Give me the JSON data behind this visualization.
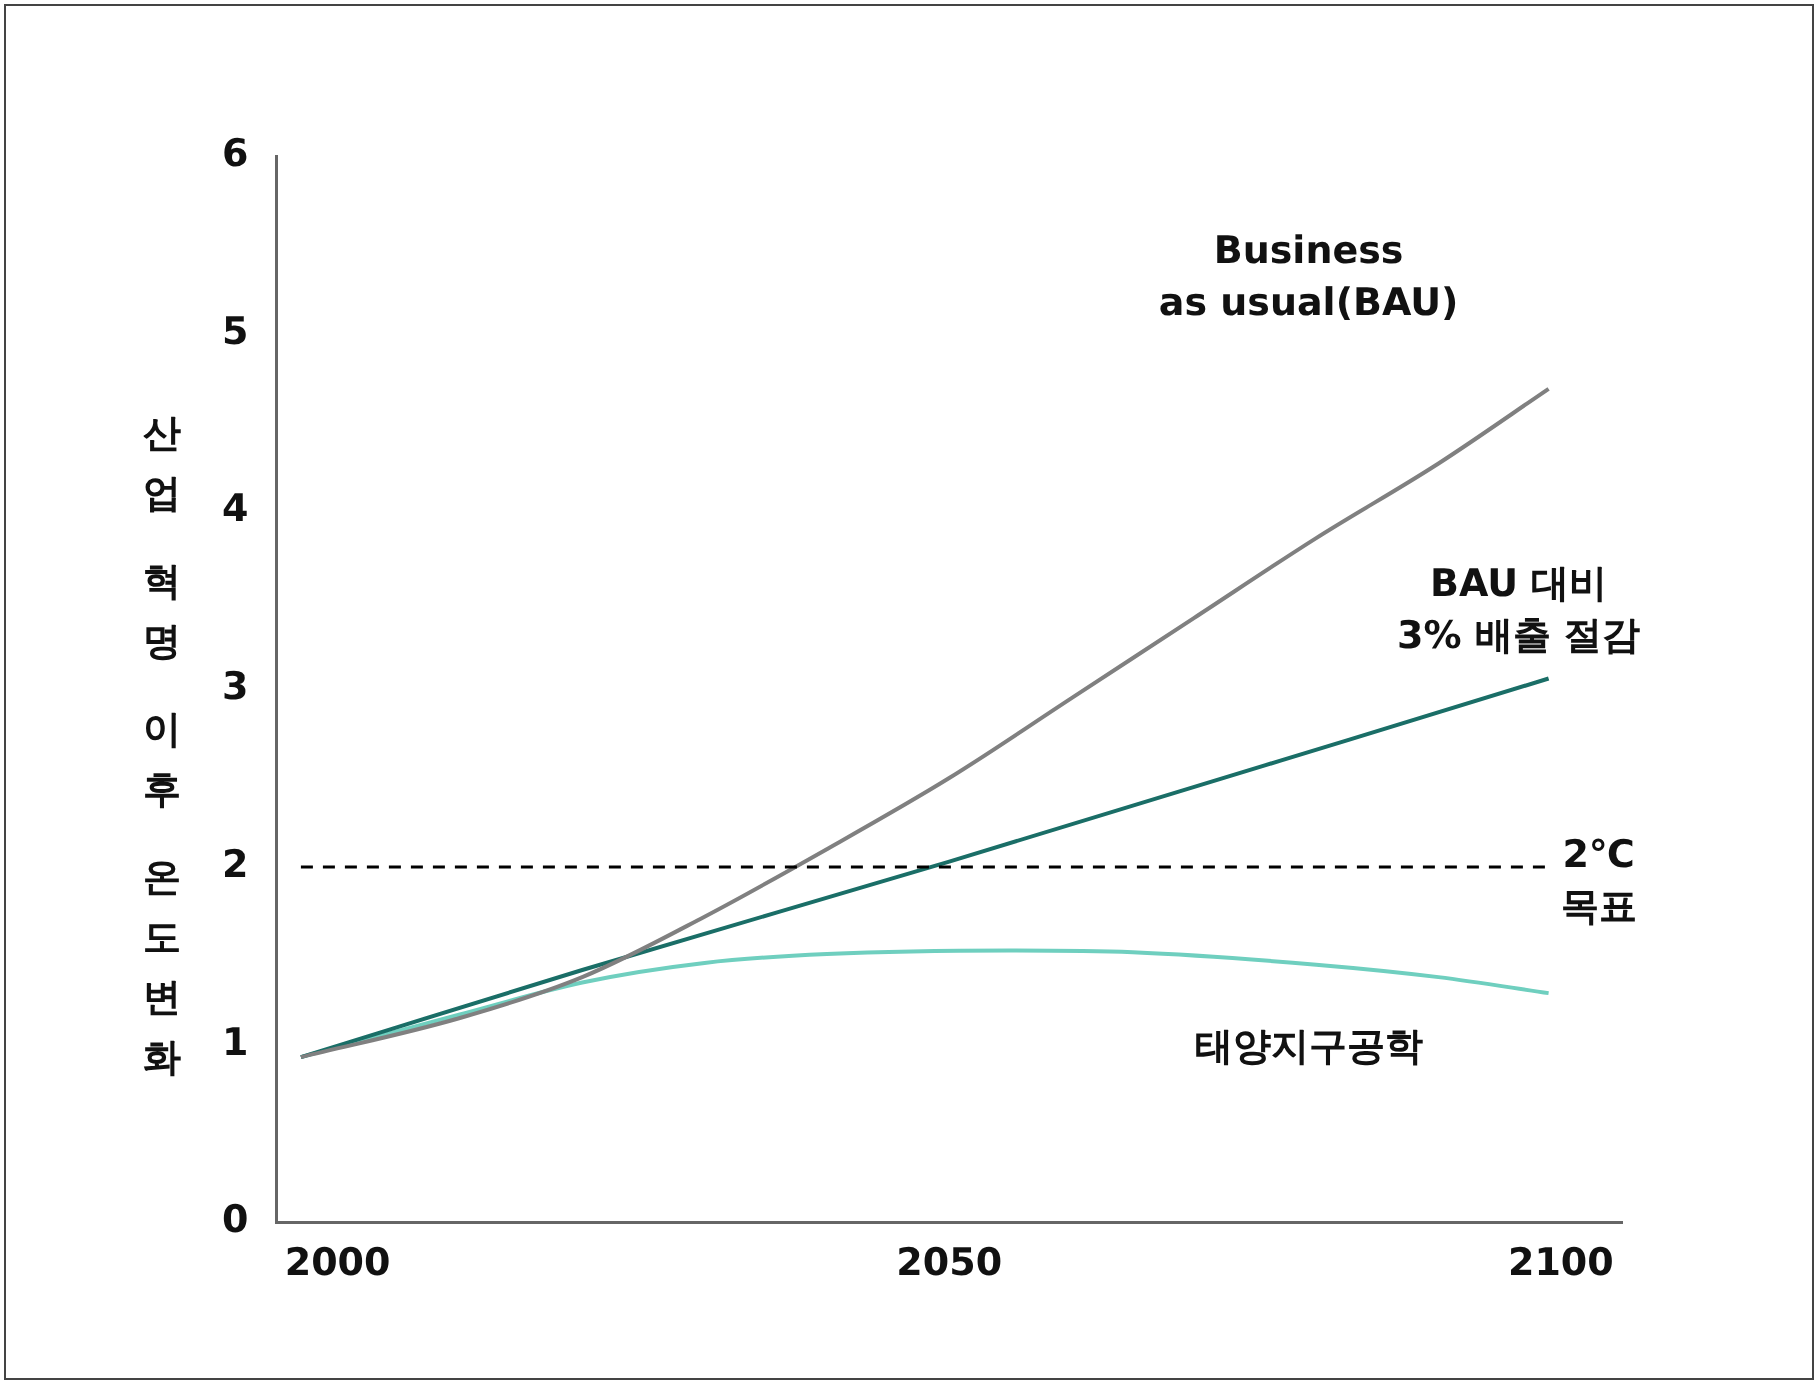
{
  "chart_data": {
    "type": "line",
    "ylabel": "산업 혁명 이후 온도변화",
    "xlim": [
      1995,
      2105
    ],
    "xticks": [
      2000,
      2050,
      2100
    ],
    "ylim": [
      0,
      6
    ],
    "yticks": [
      0,
      1,
      2,
      3,
      4,
      5,
      6
    ],
    "grid": false,
    "legend": false,
    "marker": "none",
    "line_style": "solid",
    "series": [
      {
        "name": "Business\nas usual(BAU)",
        "color": "#808080",
        "x": [
          1997,
          2010,
          2020,
          2030,
          2040,
          2050,
          2060,
          2070,
          2080,
          2090,
          2099
        ],
        "values": [
          0.93,
          1.15,
          1.38,
          1.72,
          2.1,
          2.5,
          2.95,
          3.4,
          3.85,
          4.27,
          4.69
        ]
      },
      {
        "name": "BAU 대비\n3% 배출 절감",
        "color": "#1a6e67",
        "x": [
          1997,
          2020,
          2050,
          2099
        ],
        "values": [
          0.93,
          1.42,
          2.03,
          3.06
        ]
      },
      {
        "name": "태양지구공학",
        "color": "#6fcfbf",
        "x": [
          1997,
          2010,
          2020,
          2030,
          2040,
          2055,
          2065,
          2080,
          2090,
          2099
        ],
        "values": [
          0.93,
          1.17,
          1.35,
          1.46,
          1.51,
          1.53,
          1.52,
          1.45,
          1.38,
          1.29
        ]
      }
    ],
    "ref_lines": [
      {
        "axis": "y",
        "value": 2,
        "label": "2℃\n목표",
        "color": "#000000",
        "line_style": "dashed"
      }
    ]
  }
}
